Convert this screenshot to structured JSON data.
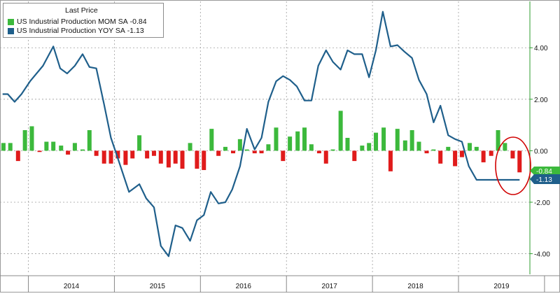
{
  "legend": {
    "title": "Last Price",
    "entries": [
      {
        "label": "US Industrial Production MOM SA",
        "value": "-0.84",
        "color": "#3cb93c"
      },
      {
        "label": "US Industrial Production YOY SA",
        "value": "-1.13",
        "color": "#1f5f8b"
      }
    ]
  },
  "badges": {
    "mom": {
      "text": "-0.84",
      "color": "#3cb93c"
    },
    "yoy": {
      "text": "-1.13",
      "color": "#1f5f8b"
    }
  },
  "chart_data": {
    "type": "bar+line",
    "y_axis": {
      "range": [
        -4.8,
        5.8
      ],
      "ticks": [
        4,
        2,
        0,
        -2,
        -4
      ],
      "tick_labels": [
        "4.00",
        "2.00",
        "0.00",
        "-2.00",
        "-4.00"
      ],
      "position": "right"
    },
    "x_axis": {
      "range": [
        2013.67,
        2019.83
      ],
      "year_labels": [
        "2014",
        "2015",
        "2016",
        "2017",
        "2018",
        "2019"
      ]
    },
    "grid": true,
    "legend_position": "top-left",
    "highlight": {
      "shape": "ellipse",
      "color": "#d00000",
      "around": "latest readings (2019)"
    },
    "series": [
      {
        "name": "US Industrial Production MOM SA",
        "type": "bar",
        "positive_color": "#3cb93c",
        "negative_color": "#e01b1b",
        "x": [
          2013.71,
          2013.79,
          2013.88,
          2013.96,
          2014.04,
          2014.13,
          2014.21,
          2014.29,
          2014.38,
          2014.46,
          2014.54,
          2014.63,
          2014.71,
          2014.79,
          2014.88,
          2014.96,
          2015.04,
          2015.13,
          2015.21,
          2015.29,
          2015.38,
          2015.46,
          2015.54,
          2015.63,
          2015.71,
          2015.79,
          2015.88,
          2015.96,
          2016.04,
          2016.13,
          2016.21,
          2016.29,
          2016.38,
          2016.46,
          2016.54,
          2016.63,
          2016.71,
          2016.79,
          2016.88,
          2016.96,
          2017.04,
          2017.13,
          2017.21,
          2017.29,
          2017.38,
          2017.46,
          2017.54,
          2017.63,
          2017.71,
          2017.79,
          2017.88,
          2017.96,
          2018.04,
          2018.13,
          2018.21,
          2018.29,
          2018.38,
          2018.46,
          2018.54,
          2018.63,
          2018.71,
          2018.79,
          2018.88,
          2018.96,
          2019.04,
          2019.13,
          2019.21,
          2019.29,
          2019.38,
          2019.46,
          2019.54,
          2019.63,
          2019.71
        ],
        "values": [
          0.3,
          0.3,
          -0.4,
          0.8,
          0.95,
          -0.05,
          0.35,
          0.35,
          0.2,
          -0.15,
          0.3,
          0.05,
          0.8,
          -0.2,
          -0.5,
          -0.5,
          -0.3,
          -0.55,
          -0.3,
          0.6,
          -0.3,
          -0.2,
          -0.5,
          -0.65,
          -0.5,
          -0.7,
          0.3,
          -0.7,
          -0.75,
          0.85,
          -0.2,
          0.15,
          -0.1,
          0.45,
          0.05,
          -0.1,
          -0.1,
          0.25,
          0.9,
          -0.4,
          0.55,
          0.75,
          0.9,
          0.25,
          -0.1,
          -0.5,
          0.05,
          1.55,
          0.5,
          -0.4,
          0.2,
          0.3,
          0.7,
          0.9,
          -0.8,
          0.85,
          0.4,
          0.8,
          0.35,
          -0.1,
          0.05,
          -0.5,
          0.15,
          -0.6,
          -0.25,
          0.3,
          0.15,
          -0.45,
          -0.2,
          0.8,
          0.3,
          -0.3,
          -0.84
        ]
      },
      {
        "name": "US Industrial Production YOY SA",
        "type": "line",
        "color": "#1f5f8b",
        "x": [
          2013.7,
          2013.76,
          2013.84,
          2013.92,
          2014.02,
          2014.17,
          2014.29,
          2014.37,
          2014.45,
          2014.54,
          2014.63,
          2014.71,
          2014.79,
          2014.88,
          2014.96,
          2015.04,
          2015.17,
          2015.29,
          2015.37,
          2015.46,
          2015.54,
          2015.63,
          2015.71,
          2015.79,
          2015.88,
          2015.96,
          2016.04,
          2016.12,
          2016.21,
          2016.29,
          2016.37,
          2016.46,
          2016.54,
          2016.63,
          2016.71,
          2016.79,
          2016.88,
          2016.96,
          2017.04,
          2017.12,
          2017.21,
          2017.29,
          2017.37,
          2017.46,
          2017.54,
          2017.63,
          2017.71,
          2017.79,
          2017.88,
          2017.96,
          2018.04,
          2018.12,
          2018.21,
          2018.29,
          2018.37,
          2018.46,
          2018.54,
          2018.63,
          2018.71,
          2018.79,
          2018.88,
          2018.96,
          2019.04,
          2019.12,
          2019.21,
          2019.29,
          2019.37,
          2019.46,
          2019.54,
          2019.63,
          2019.71
        ],
        "values": [
          2.2,
          2.2,
          1.9,
          2.2,
          2.7,
          3.3,
          4.05,
          3.2,
          3.0,
          3.3,
          3.75,
          3.25,
          3.2,
          1.8,
          0.5,
          -0.3,
          -1.6,
          -1.3,
          -1.85,
          -2.2,
          -3.7,
          -4.1,
          -2.9,
          -3.0,
          -3.5,
          -2.7,
          -2.5,
          -1.6,
          -2.05,
          -2.0,
          -1.5,
          -0.6,
          0.85,
          0.05,
          0.5,
          1.9,
          2.7,
          2.9,
          2.75,
          2.5,
          1.95,
          1.95,
          3.3,
          3.9,
          3.45,
          3.15,
          3.9,
          3.75,
          3.75,
          2.85,
          3.9,
          5.4,
          4.05,
          4.1,
          3.85,
          3.6,
          2.75,
          2.2,
          1.1,
          1.75,
          0.6,
          0.45,
          0.35,
          -0.6,
          -1.13,
          -1.13,
          -1.13,
          -1.13,
          -1.13,
          -1.13,
          -1.13
        ]
      }
    ]
  }
}
